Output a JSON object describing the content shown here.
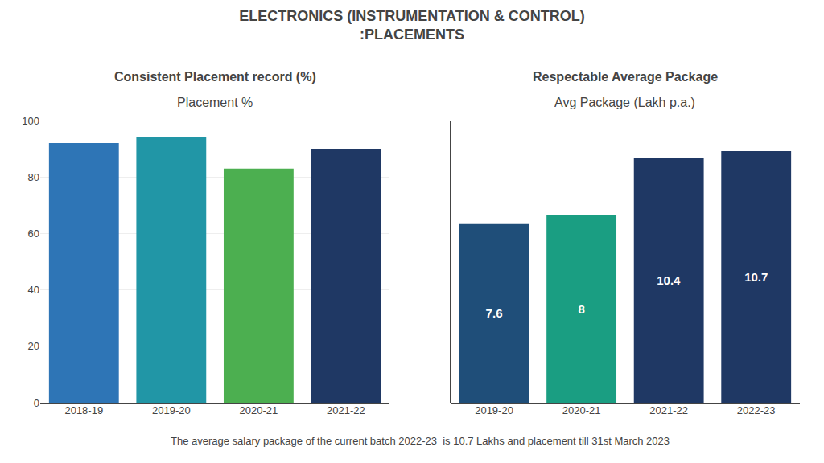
{
  "title": "ELECTRONICS (INSTRUMENTATION & CONTROL)\n:PLACEMENTS",
  "annotations": [
    "The average salary package of the current batch 2022-23  is 10.7 Lakhs and placement till 31st March 2023"
  ],
  "chart_data": [
    {
      "type": "bar",
      "title": "Placement %",
      "subtitle": "Consistent Placement record (%)",
      "categories": [
        "2018-19",
        "2019-20",
        "2020-21",
        "2021-22"
      ],
      "values": [
        92,
        94,
        83,
        90
      ],
      "colors": [
        "#2E75B6",
        "#2196A6",
        "#4CAF50",
        "#1F3864"
      ],
      "ylim": [
        0,
        100
      ],
      "yticks": [
        0,
        20,
        40,
        60,
        80,
        100
      ],
      "grid": true
    },
    {
      "type": "bar",
      "title": "Avg Package (Lakh p.a.)",
      "subtitle": "Respectable Average Package",
      "categories": [
        "2019-20",
        "2020-21",
        "2021-22",
        "2022-23"
      ],
      "values": [
        7.6,
        8.0,
        10.4,
        10.7
      ],
      "colors": [
        "#1F4E79",
        "#1A9E82",
        "#1F3864",
        "#1F3864"
      ],
      "ylim": [
        0,
        12
      ],
      "grid": false,
      "data_labels": true,
      "tick_labels": "x"
    }
  ]
}
